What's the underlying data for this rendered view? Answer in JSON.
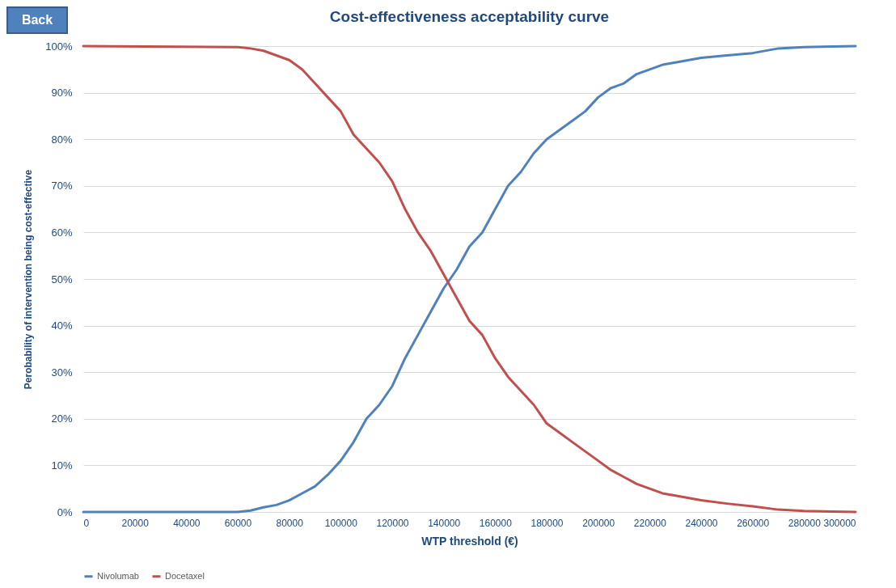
{
  "chart_data": {
    "type": "line",
    "title": "Cost-effectiveness acceptability curve",
    "xlabel": "WTP threshold (€)",
    "ylabel": "Perobability of intervention being cost-effective",
    "annotations": [
      "Back"
    ],
    "xlim": [
      0,
      300000
    ],
    "xticks": [
      0,
      20000,
      40000,
      60000,
      80000,
      100000,
      120000,
      140000,
      160000,
      180000,
      200000,
      220000,
      240000,
      260000,
      280000,
      300000
    ],
    "ylim": [
      0,
      100
    ],
    "yticks": [
      {
        "value": 0,
        "label": "0%"
      },
      {
        "value": 10,
        "label": "10%"
      },
      {
        "value": 20,
        "label": "20%"
      },
      {
        "value": 30,
        "label": "30%"
      },
      {
        "value": 40,
        "label": "40%"
      },
      {
        "value": 50,
        "label": "50%"
      },
      {
        "value": 60,
        "label": "60%"
      },
      {
        "value": 70,
        "label": "70%"
      },
      {
        "value": 80,
        "label": "80%"
      },
      {
        "value": 90,
        "label": "90%"
      },
      {
        "value": 100,
        "label": "100%"
      }
    ],
    "grid": "y",
    "legend": "bottom",
    "marker": "none",
    "line_style": "solid",
    "x": [
      0,
      60000,
      65000,
      70000,
      75000,
      80000,
      85000,
      90000,
      95000,
      100000,
      105000,
      110000,
      115000,
      120000,
      125000,
      130000,
      135000,
      140000,
      145000,
      150000,
      155000,
      160000,
      165000,
      170000,
      175000,
      180000,
      185000,
      190000,
      195000,
      200000,
      205000,
      210000,
      215000,
      220000,
      225000,
      230000,
      240000,
      250000,
      260000,
      270000,
      280000,
      300000
    ],
    "series": [
      {
        "name": "Nivolumab",
        "color": "#4f81bd",
        "values": [
          0,
          0,
          0.3,
          1,
          1.5,
          2.5,
          4,
          5.5,
          8,
          11,
          15,
          20,
          23,
          27,
          33,
          38,
          43,
          48,
          52,
          57,
          60,
          65,
          70,
          73,
          77,
          80,
          82,
          84,
          86,
          89,
          91,
          92,
          94,
          95,
          96,
          96.5,
          97.5,
          98,
          98.5,
          99.5,
          99.8,
          100
        ]
      },
      {
        "name": "Docetaxel",
        "color": "#c0504d",
        "values": [
          100,
          99.8,
          99.5,
          99,
          98,
          97,
          95,
          92,
          89,
          86,
          81,
          78,
          75,
          71,
          65,
          60,
          56,
          51,
          46,
          41,
          38,
          33,
          29,
          26,
          23,
          19,
          17,
          15,
          13,
          11,
          9,
          7.5,
          6,
          5,
          4,
          3.5,
          2.5,
          1.8,
          1.2,
          0.5,
          0.2,
          0
        ]
      }
    ]
  }
}
